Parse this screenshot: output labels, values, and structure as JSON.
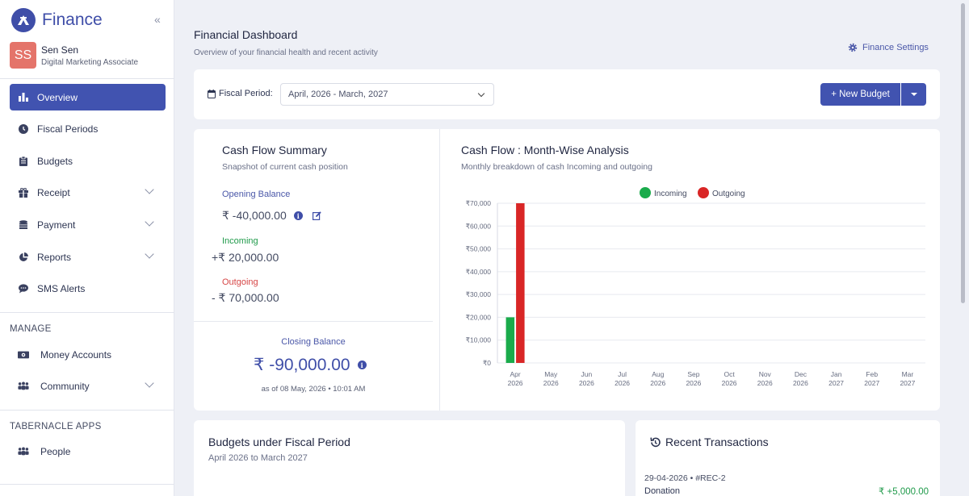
{
  "brand": {
    "name": "Finance",
    "collapse_icon": "«"
  },
  "user": {
    "initials": "SS",
    "name": "Sen Sen",
    "role": "Digital Marketing Associate"
  },
  "nav": {
    "items": [
      {
        "label": "Overview",
        "icon": "bar-chart-icon",
        "active": true
      },
      {
        "label": "Fiscal Periods",
        "icon": "clock-icon"
      },
      {
        "label": "Budgets",
        "icon": "clipboard-icon"
      },
      {
        "label": "Receipt",
        "icon": "gift-icon",
        "expandable": true
      },
      {
        "label": "Payment",
        "icon": "coins-icon",
        "expandable": true
      },
      {
        "label": "Reports",
        "icon": "pie-chart-icon",
        "expandable": true
      },
      {
        "label": "SMS Alerts",
        "icon": "chat-icon"
      }
    ],
    "manage_label": "MANAGE",
    "manage_items": [
      {
        "label": "Money Accounts",
        "icon": "money-icon"
      },
      {
        "label": "Community",
        "icon": "people-icon",
        "expandable": true
      }
    ],
    "apps_label": "TABERNACLE APPS",
    "apps_items": [
      {
        "label": "People",
        "icon": "people-icon"
      }
    ]
  },
  "header": {
    "title": "Financial Dashboard",
    "subtitle": "Overview of your financial health and recent activity",
    "settings_label": "Finance Settings"
  },
  "toolbar": {
    "period_label": "Fiscal Period:",
    "period_value": "April, 2026 - March, 2027",
    "new_budget_label": "+ New Budget"
  },
  "cash_flow": {
    "title": "Cash Flow Summary",
    "subtitle": "Snapshot of current cash position",
    "opening_label": "Opening Balance",
    "opening_value": "₹ -40,000.00",
    "incoming_label": "Incoming",
    "incoming_value": "+₹ 20,000.00",
    "outgoing_label": "Outgoing",
    "outgoing_value": "- ₹ 70,000.00",
    "closing_label": "Closing Balance",
    "closing_value": "₹ -90,000.00",
    "as_of": "as of 08 May, 2026 • 10:01 AM",
    "colors": {
      "incoming": "#1f9a4a",
      "outgoing": "#d64545",
      "accent": "#3f4ea8"
    }
  },
  "chart_panel": {
    "title": "Cash Flow : Month-Wise Analysis",
    "subtitle": "Monthly breakdown of cash Incoming and outgoing"
  },
  "chart_data": {
    "type": "bar",
    "categories": [
      [
        "Apr",
        "2026"
      ],
      [
        "May",
        "2026"
      ],
      [
        "Jun",
        "2026"
      ],
      [
        "Jul",
        "2026"
      ],
      [
        "Aug",
        "2026"
      ],
      [
        "Sep",
        "2026"
      ],
      [
        "Oct",
        "2026"
      ],
      [
        "Nov",
        "2026"
      ],
      [
        "Dec",
        "2026"
      ],
      [
        "Jan",
        "2027"
      ],
      [
        "Feb",
        "2027"
      ],
      [
        "Mar",
        "2027"
      ]
    ],
    "series": [
      {
        "name": "Incoming",
        "color": "#1aab4b",
        "values": [
          20000,
          0,
          0,
          0,
          0,
          0,
          0,
          0,
          0,
          0,
          0,
          0
        ]
      },
      {
        "name": "Outgoing",
        "color": "#d92626",
        "values": [
          70000,
          0,
          0,
          0,
          0,
          0,
          0,
          0,
          0,
          0,
          0,
          0
        ]
      }
    ],
    "ylim": [
      0,
      70000
    ],
    "yticks": [
      0,
      10000,
      20000,
      30000,
      40000,
      50000,
      60000,
      70000
    ],
    "ytick_labels": [
      "₹0",
      "₹10,000",
      "₹20,000",
      "₹30,000",
      "₹40,000",
      "₹50,000",
      "₹60,000",
      "₹70,000"
    ],
    "legend_position": "top-center",
    "grid": true
  },
  "budgets": {
    "title": "Budgets under Fiscal Period",
    "subtitle": "April 2026 to March 2027"
  },
  "recent": {
    "title": "Recent Transactions",
    "items": [
      {
        "meta": "29-04-2026 • #REC-2",
        "name": "Donation",
        "amount": "₹ +5,000.00"
      }
    ]
  }
}
